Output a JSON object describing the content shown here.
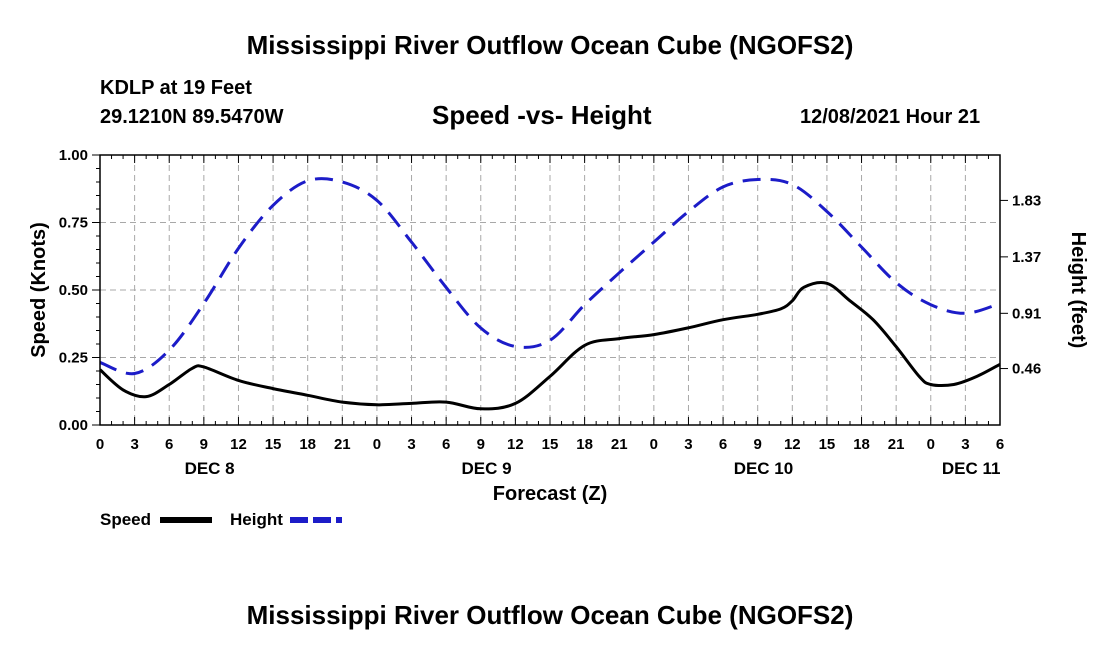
{
  "page_title": "Mississippi River Outflow Ocean Cube (NGOFS2)",
  "station": "KDLP at 19 Feet",
  "coords": "29.1210N  89.5470W",
  "run_time": "12/08/2021 Hour 21",
  "chart_data": {
    "type": "line",
    "title": "Speed -vs- Height",
    "xlabel": "Forecast (Z)",
    "ylabel": "Speed (Knots)",
    "y2label": "Height (feet)",
    "x_range_hours": [
      0,
      78
    ],
    "x_tick_labels": [
      "0",
      "3",
      "6",
      "9",
      "12",
      "15",
      "18",
      "21",
      "0",
      "3",
      "6",
      "9",
      "12",
      "15",
      "18",
      "21",
      "0",
      "3",
      "6",
      "9",
      "12",
      "15",
      "18",
      "21",
      "0",
      "3",
      "6"
    ],
    "date_labels": [
      {
        "label": "DEC 8",
        "hour": 9.5
      },
      {
        "label": "DEC 9",
        "hour": 33.5
      },
      {
        "label": "DEC 10",
        "hour": 57.5
      },
      {
        "label": "DEC 11",
        "hour": 75.5
      }
    ],
    "ylim": [
      0,
      1.0
    ],
    "y_ticks": [
      "0.00",
      "0.25",
      "0.50",
      "0.75",
      "1.00"
    ],
    "y2lim": [
      0.0,
      2.2
    ],
    "y2_ticks": [
      "0.46",
      "0.91",
      "1.37",
      "1.83"
    ],
    "series": [
      {
        "name": "Speed",
        "axis": "left",
        "color": "#000000",
        "dash": "solid",
        "x": [
          0,
          2,
          4,
          6,
          8,
          9,
          12,
          15,
          18,
          21,
          24,
          27,
          30,
          33,
          36,
          39,
          42,
          45,
          48,
          51,
          54,
          57,
          59,
          60,
          61,
          63,
          65,
          67,
          69,
          71,
          72,
          74,
          76,
          78
        ],
        "values": [
          0.205,
          0.13,
          0.105,
          0.15,
          0.21,
          0.215,
          0.165,
          0.135,
          0.11,
          0.085,
          0.075,
          0.08,
          0.085,
          0.06,
          0.08,
          0.18,
          0.295,
          0.32,
          0.335,
          0.36,
          0.39,
          0.41,
          0.43,
          0.46,
          0.51,
          0.525,
          0.46,
          0.39,
          0.29,
          0.18,
          0.15,
          0.15,
          0.18,
          0.225
        ]
      },
      {
        "name": "Height",
        "axis": "right",
        "color": "#1c1cc8",
        "dash": "dashed",
        "x": [
          0,
          3,
          6,
          9,
          12,
          15,
          18,
          21,
          24,
          27,
          30,
          33,
          36,
          39,
          42,
          45,
          48,
          51,
          54,
          57,
          60,
          63,
          66,
          69,
          72,
          75,
          78
        ],
        "values": [
          0.51,
          0.42,
          0.61,
          0.99,
          1.44,
          1.79,
          1.99,
          1.98,
          1.83,
          1.49,
          1.12,
          0.79,
          0.64,
          0.69,
          0.98,
          1.24,
          1.49,
          1.74,
          1.94,
          2.0,
          1.96,
          1.74,
          1.45,
          1.16,
          0.98,
          0.91,
          0.99
        ]
      }
    ],
    "legend": [
      "Speed",
      "Height"
    ]
  }
}
